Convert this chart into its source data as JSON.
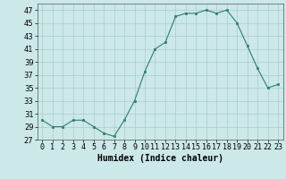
{
  "x": [
    0,
    1,
    2,
    3,
    4,
    5,
    6,
    7,
    8,
    9,
    10,
    11,
    12,
    13,
    14,
    15,
    16,
    17,
    18,
    19,
    20,
    21,
    22,
    23
  ],
  "y": [
    30,
    29,
    29,
    30,
    30,
    29,
    28,
    27.5,
    30,
    33,
    37.5,
    41,
    42,
    46,
    46.5,
    46.5,
    47,
    46.5,
    47,
    45,
    41.5,
    38,
    35,
    35.5
  ],
  "xlabel": "Humidex (Indice chaleur)",
  "ylabel": "",
  "ylim": [
    27,
    48
  ],
  "xlim": [
    -0.5,
    23.5
  ],
  "yticks": [
    27,
    29,
    31,
    33,
    35,
    37,
    39,
    41,
    43,
    45,
    47
  ],
  "xtick_labels": [
    "0",
    "1",
    "2",
    "3",
    "4",
    "5",
    "6",
    "7",
    "8",
    "9",
    "10",
    "11",
    "12",
    "13",
    "14",
    "15",
    "16",
    "17",
    "18",
    "19",
    "20",
    "21",
    "22",
    "23"
  ],
  "line_color": "#2e7d6e",
  "marker_color": "#2e7d6e",
  "bg_color": "#cce8e8",
  "grid_color": "#aacccc",
  "axis_fontsize": 7,
  "tick_fontsize": 6
}
